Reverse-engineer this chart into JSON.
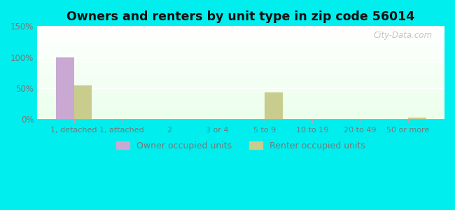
{
  "title": "Owners and renters by unit type in zip code 56014",
  "categories": [
    "1, detached",
    "1, attached",
    "2",
    "3 or 4",
    "5 to 9",
    "10 to 19",
    "20 to 49",
    "50 or more"
  ],
  "owner_values": [
    100,
    0,
    0,
    0,
    0,
    0,
    0,
    0
  ],
  "renter_values": [
    55,
    0,
    0,
    0,
    43,
    0,
    0,
    2
  ],
  "owner_color": "#c9a8d4",
  "renter_color": "#c8cc8c",
  "ylim": [
    0,
    150
  ],
  "yticks": [
    0,
    50,
    100,
    150
  ],
  "ytick_labels": [
    "0%",
    "50%",
    "100%",
    "150%"
  ],
  "background_color": "#00eeee",
  "bar_width": 0.38,
  "legend_owner": "Owner occupied units",
  "legend_renter": "Renter occupied units",
  "watermark": "City-Data.com",
  "tick_color": "#777777",
  "title_color": "#111111"
}
